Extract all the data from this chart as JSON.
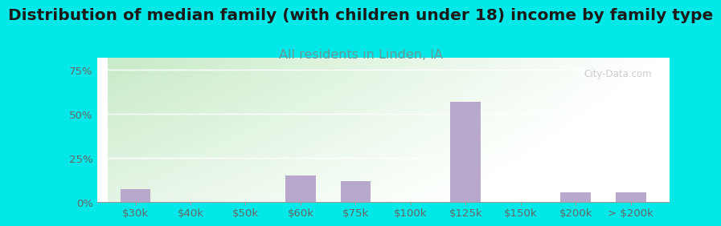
{
  "title": "Distribution of median family (with children under 18) income by family type",
  "subtitle": "All residents in Linden, IA",
  "categories": [
    "$30k",
    "$40k",
    "$50k",
    "$60k",
    "$75k",
    "$100k",
    "$125k",
    "$150k",
    "$200k",
    "> $200k"
  ],
  "values": [
    7.5,
    0,
    0,
    15,
    12,
    0,
    57,
    0,
    5.5,
    5.5
  ],
  "bar_color": "#b8a8cc",
  "title_color": "#1a1a1a",
  "subtitle_color": "#669999",
  "tick_color": "#666666",
  "background_outer": "#00e8e8",
  "yticks": [
    0,
    25,
    50,
    75
  ],
  "ylim": [
    0,
    82
  ],
  "title_fontsize": 14.5,
  "subtitle_fontsize": 11.5,
  "tick_fontsize": 9.5,
  "watermark": "City-Data.com"
}
